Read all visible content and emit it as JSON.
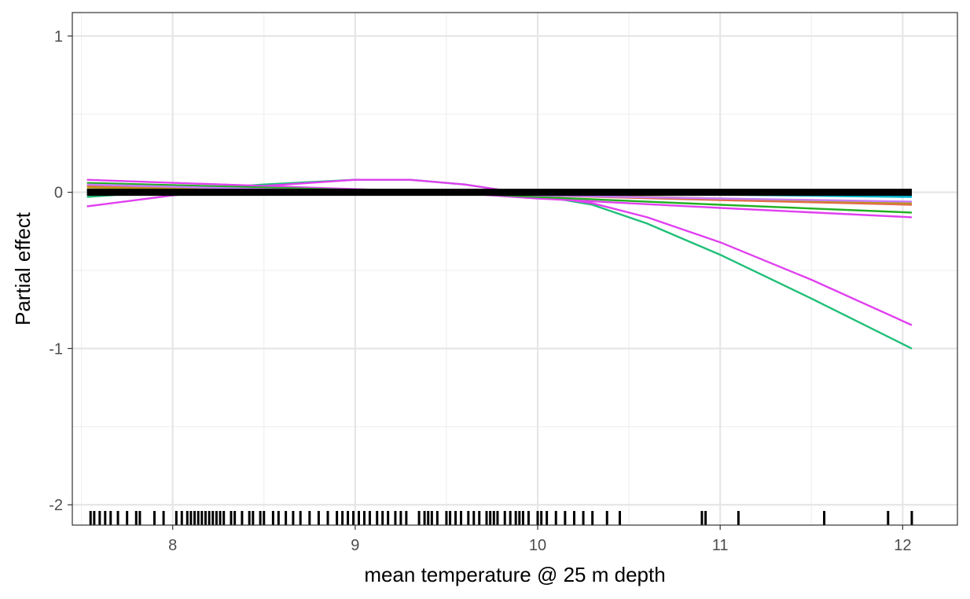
{
  "chart_data": {
    "type": "line",
    "title": "",
    "xlabel": "mean temperature @ 25 m depth",
    "ylabel": "Partial effect",
    "xlim": [
      7.45,
      12.3
    ],
    "ylim": [
      -2.13,
      1.15
    ],
    "x_ticks": [
      8,
      9,
      10,
      11,
      12
    ],
    "x_tick_labels": [
      "8",
      "9",
      "10",
      "11",
      "12"
    ],
    "y_ticks": [
      1,
      0,
      -1,
      -2
    ],
    "y_tick_labels": [
      "1",
      "0",
      "-1",
      "-2"
    ],
    "y_minor_gridlines": [
      0.5,
      -0.5,
      -1.5
    ],
    "x_minor_gridlines": [
      7.5,
      8.5,
      9.5,
      10.5,
      11.5
    ],
    "grid": true,
    "legend": "none",
    "series": [
      {
        "color": "#1fbf78",
        "x": [
          7.53,
          8.0,
          8.5,
          9.0,
          9.3,
          9.6,
          10.0,
          10.3,
          10.6,
          11.0,
          11.5,
          12.05
        ],
        "y": [
          -0.03,
          0.01,
          0.05,
          0.08,
          0.08,
          0.05,
          -0.02,
          -0.08,
          -0.2,
          -0.4,
          -0.68,
          -1.0
        ]
      },
      {
        "color": "#e040f0",
        "x": [
          7.53,
          8.0,
          8.5,
          9.0,
          9.3,
          9.6,
          10.0,
          10.3,
          10.6,
          11.0,
          11.5,
          12.05
        ],
        "y": [
          -0.09,
          -0.02,
          0.04,
          0.08,
          0.08,
          0.05,
          -0.02,
          -0.07,
          -0.16,
          -0.32,
          -0.56,
          -0.85
        ]
      },
      {
        "color": "#e040f0",
        "x": [
          7.53,
          8.5,
          9.5,
          10.0,
          11.0,
          12.05
        ],
        "y": [
          0.08,
          0.04,
          0.0,
          -0.04,
          -0.1,
          -0.16
        ]
      },
      {
        "color": "#22b022",
        "x": [
          7.53,
          8.5,
          9.5,
          10.0,
          11.0,
          12.05
        ],
        "y": [
          0.06,
          0.03,
          0.0,
          -0.03,
          -0.08,
          -0.13
        ]
      },
      {
        "color": "#e46b4a",
        "x": [
          7.53,
          8.5,
          9.5,
          10.0,
          11.0,
          12.05
        ],
        "y": [
          0.04,
          0.02,
          0.0,
          -0.02,
          -0.05,
          -0.08
        ]
      },
      {
        "color": "#b79b1e",
        "x": [
          7.53,
          8.5,
          9.5,
          10.0,
          11.0,
          12.05
        ],
        "y": [
          0.03,
          0.015,
          0.0,
          -0.015,
          -0.04,
          -0.07
        ]
      },
      {
        "color": "#c77cff",
        "x": [
          7.53,
          8.5,
          9.5,
          10.0,
          11.0,
          12.05
        ],
        "y": [
          0.05,
          0.02,
          0.0,
          -0.02,
          -0.04,
          -0.06
        ]
      },
      {
        "color": "#1a9fe6",
        "x": [
          7.53,
          8.5,
          9.5,
          10.0,
          11.0,
          12.05
        ],
        "y": [
          0.01,
          0.005,
          0.0,
          -0.005,
          -0.01,
          -0.02
        ]
      },
      {
        "color": "#00bcd0",
        "x": [
          7.53,
          8.5,
          9.5,
          10.0,
          11.0,
          12.05
        ],
        "y": [
          0.015,
          0.008,
          0.0,
          -0.008,
          -0.015,
          -0.03
        ]
      },
      {
        "color": "#000000",
        "x": [
          7.53,
          12.05
        ],
        "y": [
          0.0,
          0.0
        ],
        "thick": true
      }
    ],
    "rug_x": [
      7.55,
      7.57,
      7.6,
      7.63,
      7.66,
      7.7,
      7.75,
      7.8,
      7.82,
      7.9,
      7.95,
      8.02,
      8.05,
      8.08,
      8.1,
      8.12,
      8.14,
      8.16,
      8.18,
      8.2,
      8.22,
      8.24,
      8.26,
      8.28,
      8.32,
      8.34,
      8.38,
      8.42,
      8.44,
      8.48,
      8.5,
      8.55,
      8.58,
      8.62,
      8.66,
      8.7,
      8.75,
      8.8,
      8.85,
      8.9,
      8.93,
      8.96,
      8.99,
      9.02,
      9.05,
      9.08,
      9.12,
      9.15,
      9.18,
      9.22,
      9.25,
      9.28,
      9.35,
      9.38,
      9.4,
      9.42,
      9.45,
      9.5,
      9.52,
      9.55,
      9.58,
      9.62,
      9.65,
      9.68,
      9.72,
      9.74,
      9.76,
      9.78,
      9.82,
      9.85,
      9.88,
      9.9,
      9.92,
      9.95,
      10.0,
      10.02,
      10.05,
      10.1,
      10.15,
      10.2,
      10.25,
      10.3,
      10.38,
      10.45,
      10.9,
      10.92,
      11.1,
      11.57,
      11.92,
      12.05
    ]
  }
}
